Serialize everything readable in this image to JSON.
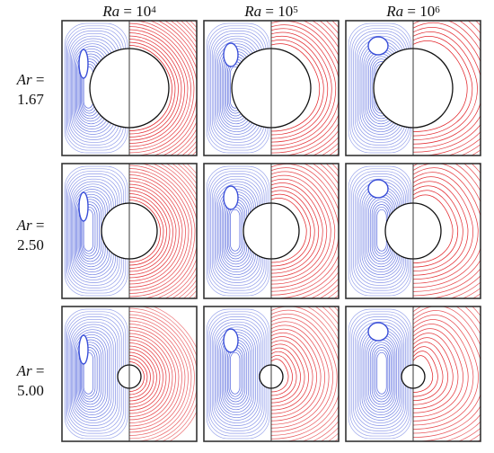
{
  "columns": [
    {
      "prefix": "Ra",
      "eq": " = 10",
      "exp": "4"
    },
    {
      "prefix": "Ra",
      "eq": " = 10",
      "exp": "5"
    },
    {
      "prefix": "Ra",
      "eq": " = 10",
      "exp": "6"
    }
  ],
  "rows": [
    {
      "prefix": "Ar",
      "eq": " =",
      "value": "1.67"
    },
    {
      "prefix": "Ar",
      "eq": " =",
      "value": "2.50"
    },
    {
      "prefix": "Ar",
      "eq": " =",
      "value": "5.00"
    }
  ],
  "colors": {
    "streamlines": "#3a4fd8",
    "isotherms": "#e0151b",
    "frame": "#333333",
    "cylinder_fill": "#ffffff"
  }
}
